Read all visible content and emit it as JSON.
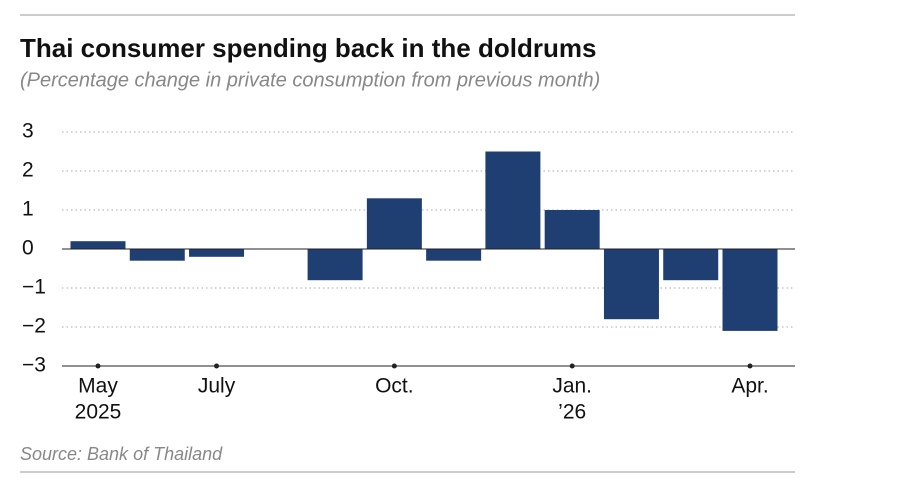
{
  "chart_data": {
    "type": "bar",
    "title": "Thai consumer spending back in the doldrums",
    "subtitle": "(Percentage change in private consumption from previous month)",
    "source": "Source: Bank of Thailand",
    "categories": [
      "May",
      null,
      "July",
      null,
      null,
      "Oct.",
      null,
      null,
      "Jan.",
      null,
      null,
      "Apr."
    ],
    "category_years": [
      "2025",
      null,
      null,
      null,
      null,
      null,
      null,
      null,
      "’26",
      null,
      null,
      null
    ],
    "values": [
      0.2,
      -0.3,
      -0.2,
      0,
      -0.8,
      1.3,
      -0.3,
      2.5,
      1.0,
      -1.8,
      -0.8,
      -2.1
    ],
    "color": "#1f3f73",
    "ylim": [
      -3,
      3
    ],
    "yticks": [
      3,
      2,
      1,
      0,
      {
        "value": -1,
        "label": "−1"
      },
      {
        "value": -2,
        "label": "−2"
      },
      {
        "value": -3,
        "label": "−3"
      }
    ],
    "grid": true
  }
}
